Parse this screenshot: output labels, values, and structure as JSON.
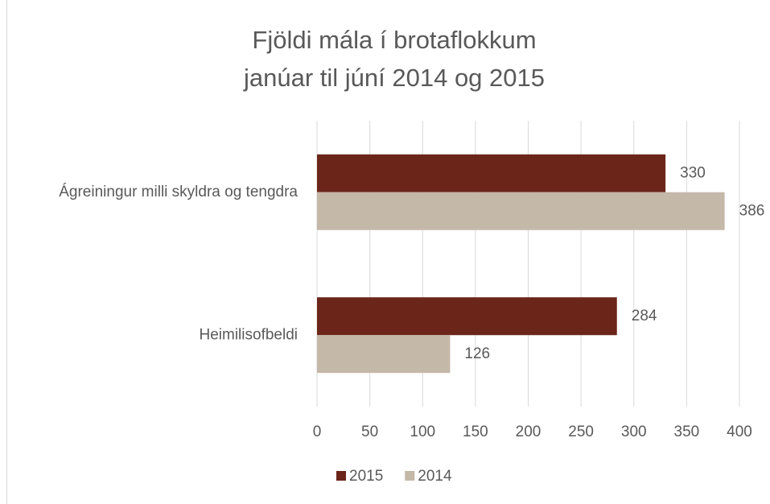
{
  "chart_data": {
    "type": "hbar",
    "title": "Fjöldi mála í brotaflokkum",
    "subtitle": "janúar til júní 2014 og 2015",
    "categories": [
      "Ágreiningur milli skyldra og tengdra",
      "Heimilisofbeldi"
    ],
    "series": [
      {
        "name": "2015",
        "color": "#6b2519",
        "values": [
          330,
          284
        ]
      },
      {
        "name": "2014",
        "color": "#c4b8a8",
        "values": [
          386,
          126
        ]
      }
    ],
    "xlim": [
      0,
      400
    ],
    "xticks": [
      0,
      50,
      100,
      150,
      200,
      250,
      300,
      350,
      400
    ],
    "grid": true,
    "legend": "bottom"
  }
}
